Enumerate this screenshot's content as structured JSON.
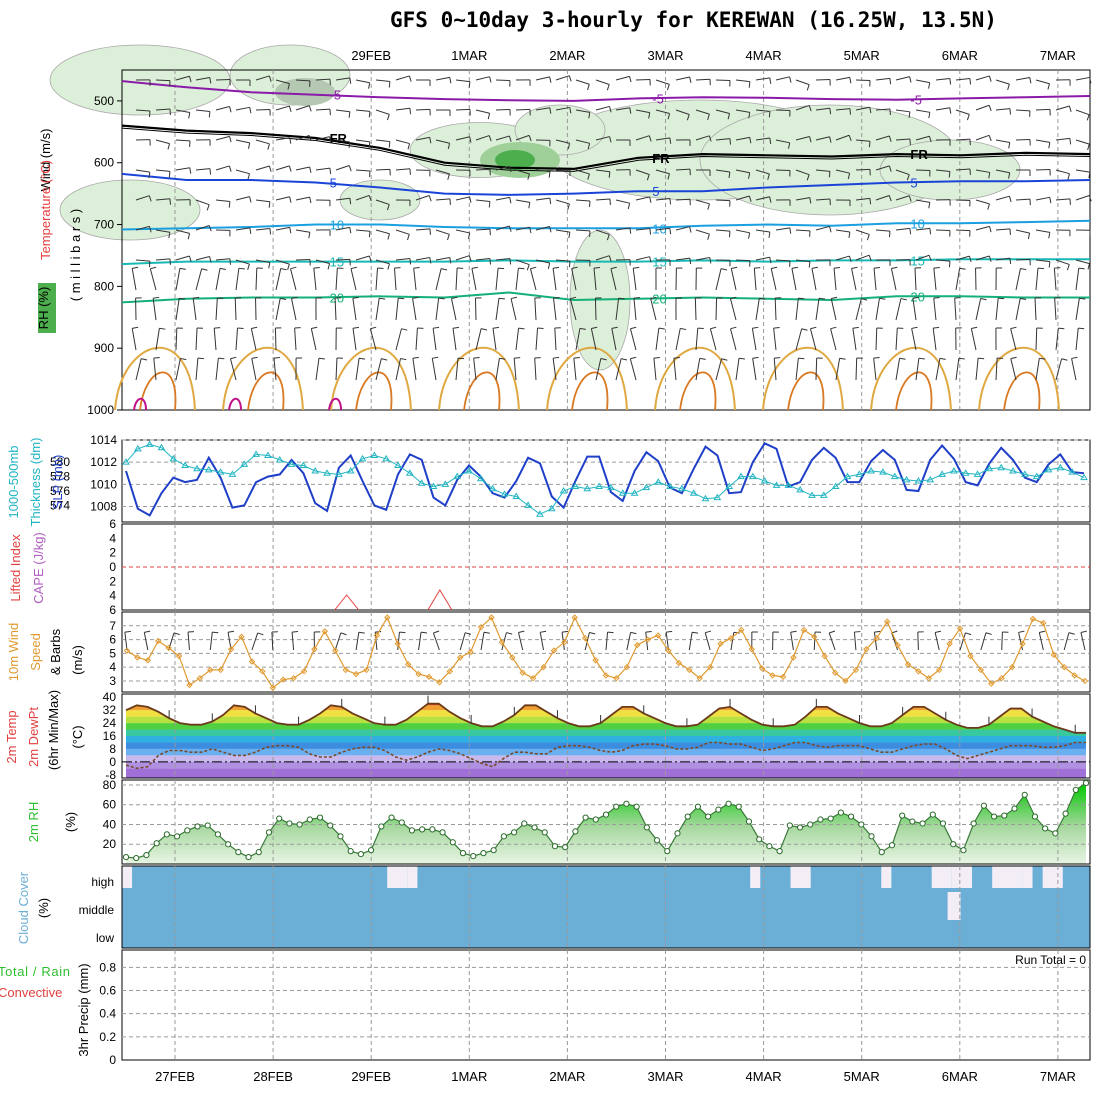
{
  "title": "GFS 0~10day 3-hourly for KEREWAN (16.25W, 13.5N)",
  "colors": {
    "grid": "#9a9a9a",
    "wind_barb": "#333333",
    "slp": "#1f3fc8",
    "thickness": "#22b5c2",
    "lifted": "#e04040",
    "cape": "#b060c0",
    "wind10": "#e09a30",
    "temp_line": "#6a3a1a",
    "dewpt": "#7a4a2a",
    "rh2m": "#2ec02e",
    "cloud": "#6baed6",
    "cloud_gap": "#f3eef6"
  },
  "chart_data": [
    {
      "type": "contour",
      "panel": "upper-air",
      "ylabel": "Wind (m/s)  Temperature (°C)  RH (%)   ( m i l l i b a r s )",
      "y_ticks": [
        500,
        600,
        700,
        800,
        900,
        1000
      ],
      "x_dates": [
        "27FEB",
        "28FEB",
        "29FEB",
        "1MAR",
        "2MAR",
        "3MAR",
        "4MAR",
        "5MAR",
        "6MAR",
        "7MAR"
      ],
      "isotherms": [
        {
          "label": "-5",
          "color": "#8a1aa8",
          "levels": [
            468,
            478,
            486,
            490,
            494,
            497,
            499,
            500,
            496,
            494,
            495,
            497,
            498,
            496,
            494,
            492
          ]
        },
        {
          "label": "FR",
          "color": "#000000",
          "levels": [
            540,
            548,
            552,
            560,
            576,
            600,
            608,
            610,
            592,
            586,
            588,
            590,
            586,
            588,
            584,
            586
          ]
        },
        {
          "label": "5",
          "color": "#1a44d8",
          "levels": [
            618,
            628,
            628,
            632,
            640,
            650,
            652,
            650,
            646,
            646,
            640,
            636,
            632,
            630,
            630,
            628
          ]
        },
        {
          "label": "10",
          "color": "#1a9fe0",
          "levels": [
            708,
            706,
            704,
            700,
            700,
            704,
            706,
            706,
            706,
            702,
            700,
            702,
            698,
            698,
            696,
            694
          ]
        },
        {
          "label": "15",
          "color": "#18b8b4",
          "levels": [
            764,
            760,
            760,
            760,
            760,
            760,
            758,
            760,
            760,
            758,
            760,
            758,
            758,
            756,
            756,
            756
          ]
        },
        {
          "label": "20",
          "color": "#14b078",
          "levels": [
            826,
            820,
            818,
            818,
            816,
            818,
            810,
            822,
            820,
            818,
            820,
            822,
            816,
            816,
            818,
            818
          ]
        }
      ],
      "contour_labels": [
        "-5",
        "-5",
        "FR",
        "FR",
        "FR",
        "5",
        "5",
        "10",
        "10",
        "15",
        "15",
        "20",
        "20",
        "10",
        "30",
        "30",
        "10",
        "30"
      ]
    },
    {
      "type": "line",
      "panel": "slp-thickness",
      "ylabel_left": "1000-500mb Thickness (dm)",
      "ylabel_right": "SLP (mb)",
      "y_ticks_left": [
        574,
        576,
        578,
        580
      ],
      "y_ticks_right": [
        1008,
        1010,
        1012,
        1014
      ],
      "series": [
        {
          "name": "SLP (mb)",
          "color": "#1f3fc8",
          "values": [
            1011.2,
            1007.8,
            1007.2,
            1009.2,
            1010.6,
            1010.2,
            1010.4,
            1012.4,
            1010.6,
            1007.9,
            1008.1,
            1010.2,
            1010.7,
            1010.9,
            1012.2,
            1011.0,
            1008.3,
            1007.6,
            1011.5,
            1012.6,
            1010.3,
            1008.1,
            1007.7,
            1010.9,
            1012.7,
            1012.2,
            1008.8,
            1008.1,
            1010.4,
            1011.7,
            1010.7,
            1009.2,
            1008.8,
            1010.3,
            1012.4,
            1011.9,
            1008.9,
            1007.9,
            1010.3,
            1012.5,
            1012.5,
            1009.3,
            1008.5,
            1011.2,
            1012.9,
            1012.1,
            1009.7,
            1009.2,
            1011.4,
            1013.4,
            1012.6,
            1009.2,
            1009.3,
            1012.0,
            1013.7,
            1013.2,
            1009.8,
            1010.2,
            1012.2,
            1013.3,
            1012.4,
            1010.2,
            1010.2,
            1012.1,
            1013.1,
            1012.2,
            1009.5,
            1009.4,
            1012.2,
            1013.5,
            1012.3,
            1010.2,
            1009.9,
            1011.9,
            1013.3,
            1012.2,
            1010.6,
            1010.2,
            1011.8,
            1012.7,
            1011.1,
            1011.0
          ]
        },
        {
          "name": "Thickness (dm)",
          "color": "#22b5c2",
          "values": [
            1012.0,
            1013.2,
            1013.6,
            1013.3,
            1012.3,
            1011.7,
            1011.4,
            1011.3,
            1011.1,
            1010.9,
            1011.8,
            1012.7,
            1012.6,
            1012.2,
            1011.8,
            1011.7,
            1011.2,
            1011.0,
            1010.9,
            1011.2,
            1012.3,
            1012.6,
            1012.3,
            1011.7,
            1011.0,
            1010.1,
            1009.8,
            1010.0,
            1010.7,
            1011.2,
            1010.5,
            1009.6,
            1009.1,
            1008.9,
            1008.1,
            1007.3,
            1007.8,
            1009.4,
            1009.8,
            1009.6,
            1009.8,
            1009.7,
            1009.2,
            1009.2,
            1009.7,
            1010.2,
            1009.8,
            1009.6,
            1009.2,
            1008.7,
            1008.8,
            1009.8,
            1010.7,
            1010.7,
            1010.3,
            1009.9,
            1009.9,
            1009.5,
            1009.0,
            1009.0,
            1009.8,
            1010.7,
            1010.9,
            1011.2,
            1011.1,
            1010.7,
            1010.4,
            1010.3,
            1010.4,
            1010.9,
            1011.2,
            1011.0,
            1010.9,
            1011.4,
            1011.5,
            1011.2,
            1010.9,
            1010.7,
            1011.3,
            1011.5,
            1011.1,
            1010.6
          ]
        }
      ]
    },
    {
      "type": "line",
      "panel": "stability",
      "ylabel_left": "Lifted Index",
      "ylabel_right": "CAPE (J/kg)",
      "y_ticks": [
        -6,
        -4,
        -2,
        0,
        2,
        4,
        6
      ],
      "lifted_index": [
        0.9,
        0.8,
        0.0
      ],
      "cape_peaks": [
        {
          "x": 1.75,
          "value": 3.0
        },
        {
          "x": 2.7,
          "value": 4.0
        }
      ]
    },
    {
      "type": "line",
      "panel": "10m-wind",
      "ylabel": "10m Wind Speed & Barbs (m/s)",
      "y_ticks": [
        3,
        4,
        5,
        6,
        7
      ],
      "series": [
        {
          "name": "10m Wind Speed",
          "color": "#e09a30",
          "values": [
            5.2,
            4.7,
            4.5,
            5.9,
            5.4,
            4.8,
            2.7,
            3.2,
            3.8,
            3.8,
            5.3,
            6.2,
            4.4,
            3.7,
            2.5,
            3.1,
            3.2,
            3.7,
            5.3,
            6.6,
            5.2,
            3.8,
            3.5,
            3.8,
            6.3,
            7.6,
            5.7,
            4.2,
            3.5,
            3.3,
            2.9,
            3.7,
            4.7,
            5.1,
            6.9,
            7.6,
            5.8,
            4.7,
            3.6,
            3.2,
            4.0,
            5.2,
            5.8,
            7.6,
            6.1,
            4.5,
            3.4,
            3.2,
            4.0,
            5.6,
            6.0,
            6.3,
            5.2,
            4.3,
            3.8,
            3.2,
            4.0,
            5.7,
            6.1,
            6.7,
            5.3,
            3.9,
            3.4,
            3.3,
            4.7,
            6.7,
            6.2,
            4.8,
            3.6,
            3.0,
            3.8,
            5.3,
            6.1,
            7.3,
            5.6,
            4.2,
            3.7,
            3.2,
            3.8,
            5.7,
            6.8,
            4.8,
            3.8,
            2.8,
            3.2,
            4.0,
            5.7,
            7.5,
            7.2,
            4.9,
            4.0,
            3.4,
            3.0
          ]
        }
      ]
    },
    {
      "type": "area",
      "panel": "2m-temp",
      "ylabel": "2m Temp 2m DewPt (6hr Min/Max) (°C)",
      "y_ticks": [
        -8,
        0,
        8,
        16,
        24,
        32,
        40
      ],
      "series": [
        {
          "name": "2m Temp",
          "color": "#6a3a1a",
          "values": [
            32,
            35,
            34,
            31,
            27,
            24,
            23,
            23,
            25,
            29,
            35,
            34,
            30,
            27,
            24,
            23,
            23,
            26,
            30,
            35,
            34,
            30,
            27,
            24,
            23,
            23,
            26,
            31,
            36,
            36,
            31,
            27,
            24,
            22,
            22,
            25,
            29,
            35,
            35,
            31,
            27,
            24,
            22,
            22,
            24,
            29,
            34,
            34,
            30,
            27,
            24,
            22,
            22,
            23,
            28,
            33,
            34,
            30,
            26,
            23,
            22,
            22,
            23,
            28,
            34,
            34,
            30,
            27,
            24,
            22,
            22,
            24,
            29,
            34,
            34,
            30,
            26,
            23,
            21,
            21,
            23,
            28,
            33,
            33,
            28,
            25,
            22,
            20,
            18,
            18
          ]
        },
        {
          "name": "2m DewPt",
          "color": "#7a4a2a",
          "values": [
            -2,
            -4,
            -3,
            4,
            7,
            7,
            6,
            6,
            8,
            6,
            4,
            4,
            6,
            9,
            10,
            10,
            9,
            5,
            3,
            3,
            6,
            8,
            9,
            9,
            7,
            3,
            1,
            3,
            6,
            8,
            7,
            5,
            2,
            -1,
            -3,
            2,
            6,
            6,
            5,
            5,
            9,
            10,
            10,
            9,
            7,
            6,
            7,
            10,
            11,
            11,
            10,
            8,
            8,
            9,
            12,
            12,
            11,
            11,
            9,
            7,
            8,
            10,
            12,
            12,
            10,
            9,
            10,
            10,
            10,
            8,
            6,
            6,
            8,
            10,
            11,
            11,
            8,
            4,
            2,
            4,
            6,
            8,
            10,
            10,
            10,
            9,
            9,
            10,
            12,
            12
          ]
        }
      ]
    },
    {
      "type": "area",
      "panel": "2m-rh",
      "ylabel": "2m RH (%)",
      "y_ticks": [
        20,
        40,
        60,
        80
      ],
      "series": [
        {
          "name": "2m RH",
          "color": "#2ec02e",
          "values": [
            7,
            6,
            9,
            21,
            30,
            28,
            34,
            38,
            39,
            30,
            20,
            12,
            7,
            12,
            32,
            46,
            41,
            40,
            45,
            47,
            39,
            28,
            13,
            10,
            14,
            38,
            47,
            42,
            34,
            35,
            35,
            32,
            22,
            11,
            8,
            11,
            14,
            28,
            32,
            41,
            37,
            32,
            18,
            17,
            33,
            47,
            45,
            50,
            58,
            61,
            58,
            37,
            24,
            13,
            31,
            48,
            58,
            48,
            55,
            61,
            58,
            43,
            25,
            18,
            13,
            39,
            37,
            40,
            45,
            46,
            52,
            48,
            40,
            28,
            12,
            19,
            49,
            43,
            41,
            50,
            41,
            20,
            14,
            41,
            59,
            48,
            49,
            56,
            70,
            48,
            36,
            31,
            51,
            75,
            82
          ]
        }
      ]
    },
    {
      "type": "heatmap",
      "panel": "cloud-cover",
      "ylabel": "Cloud Cover (%)",
      "rows": [
        "high",
        "middle",
        "low"
      ],
      "high_gaps": [
        [
          0,
          1
        ],
        [
          26,
          2
        ],
        [
          28,
          1
        ],
        [
          62,
          1
        ],
        [
          66,
          2
        ],
        [
          75,
          1
        ],
        [
          80,
          2
        ],
        [
          82,
          2
        ],
        [
          86,
          3
        ],
        [
          89,
          1
        ],
        [
          91,
          2
        ]
      ],
      "middle_gaps": [
        [
          28,
          1
        ]
      ]
    },
    {
      "type": "line",
      "panel": "precip",
      "ylabel_left": "Total / Rain",
      "ylabel_right": "Convective",
      "ylabel": "3hr Precip (mm)",
      "y_ticks": [
        0,
        0.2,
        0.4,
        0.6,
        0.8
      ],
      "run_total_label": "Run Total = 0",
      "values": []
    }
  ],
  "dates": [
    "27FEB",
    "28FEB",
    "29FEB",
    "1MAR",
    "2MAR",
    "3MAR",
    "4MAR",
    "5MAR",
    "6MAR",
    "7MAR"
  ]
}
